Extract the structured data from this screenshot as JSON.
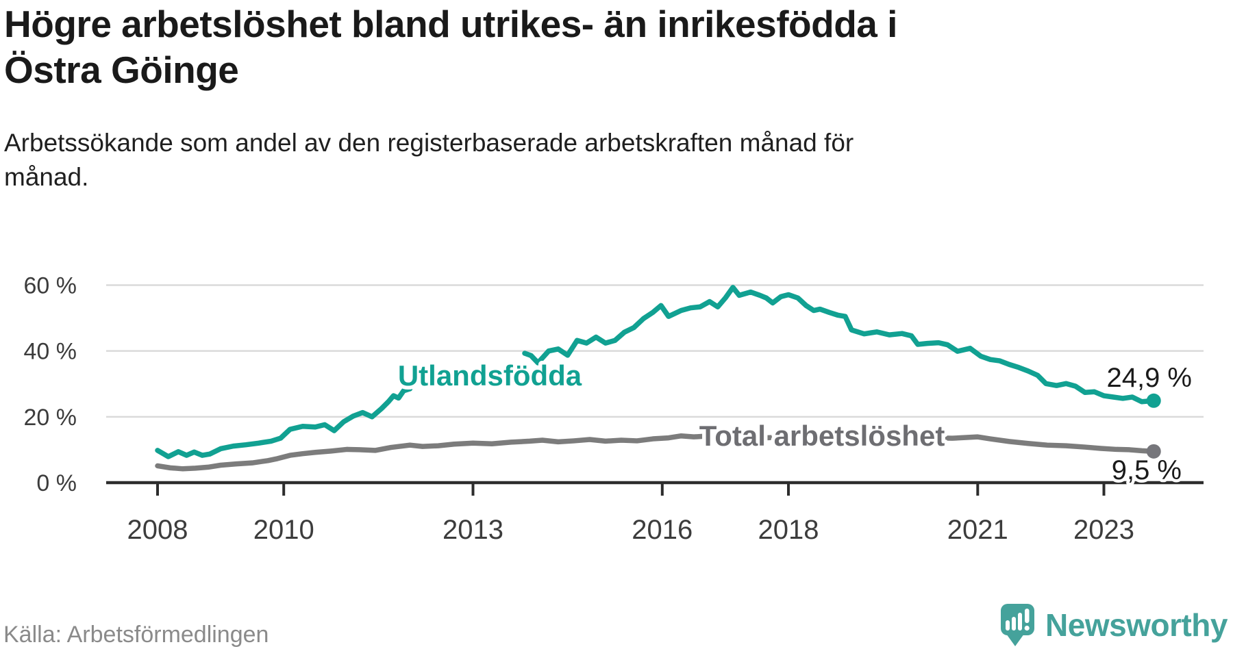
{
  "header": {
    "title": "Högre arbetslöshet bland utrikes- än inrikesfödda i\nÖstra Göinge",
    "subtitle": "Arbetssökande som andel av den registerbaserade arbetskraften månad för\nmånad."
  },
  "footer": {
    "source": "Källa: Arbetsförmedlingen",
    "brand": "Newsworthy"
  },
  "colors": {
    "accent_teal": "#11a192",
    "logo_teal": "#45a29b",
    "line_gray": "#7c7c7c",
    "label_gray": "#6e6e72",
    "dot_gray": "#76767b",
    "grid": "#dadada",
    "axis": "#2d2d2d",
    "text_dark": "#1a1a1a"
  },
  "chart_data": {
    "type": "line",
    "title": "Högre arbetslöshet bland utrikes- än inrikesfödda i Östra Göinge",
    "xlabel": "",
    "ylabel": "Arbetssökande som andel av den registerbaserade arbetskraften",
    "x_range": [
      2007.8,
      2024.4
    ],
    "y_range": [
      0,
      62
    ],
    "grid": "horizontal",
    "x_ticks": [
      {
        "year": 2008,
        "label": "2008"
      },
      {
        "year": 2010,
        "label": "2010"
      },
      {
        "year": 2013,
        "label": "2013"
      },
      {
        "year": 2016,
        "label": "2016"
      },
      {
        "year": 2018,
        "label": "2018"
      },
      {
        "year": 2021,
        "label": "2021"
      },
      {
        "year": 2023,
        "label": "2023"
      }
    ],
    "y_ticks": [
      {
        "value": 0,
        "label": "0 %"
      },
      {
        "value": 20,
        "label": "20 %"
      },
      {
        "value": 40,
        "label": "40 %"
      },
      {
        "value": 60,
        "label": "60 %"
      }
    ],
    "series": [
      {
        "name": "Utlandsfödda",
        "color": "#11a192",
        "end_label": "24,9 %",
        "end_value": 24.9,
        "segments": [
          [
            [
              2008.0,
              9.8
            ],
            [
              2008.17,
              7.9
            ],
            [
              2008.33,
              9.4
            ],
            [
              2008.46,
              8.3
            ],
            [
              2008.58,
              9.3
            ],
            [
              2008.71,
              8.3
            ],
            [
              2008.83,
              8.7
            ],
            [
              2009.0,
              10.3
            ],
            [
              2009.2,
              11.1
            ],
            [
              2009.4,
              11.5
            ],
            [
              2009.6,
              12.0
            ],
            [
              2009.8,
              12.6
            ],
            [
              2009.95,
              13.5
            ],
            [
              2010.1,
              16.2
            ],
            [
              2010.3,
              17.1
            ],
            [
              2010.5,
              16.9
            ],
            [
              2010.65,
              17.6
            ],
            [
              2010.8,
              15.8
            ],
            [
              2010.95,
              18.5
            ],
            [
              2011.1,
              20.2
            ],
            [
              2011.25,
              21.3
            ],
            [
              2011.4,
              20.0
            ],
            [
              2011.55,
              22.5
            ],
            [
              2011.66,
              24.6
            ],
            [
              2011.74,
              26.4
            ],
            [
              2011.82,
              25.7
            ],
            [
              2011.9,
              27.9
            ],
            [
              2012.0,
              28.5
            ]
          ],
          [
            [
              2013.82,
              39.3
            ],
            [
              2013.92,
              38.6
            ],
            [
              2014.03,
              36.4
            ],
            [
              2014.2,
              40.0
            ],
            [
              2014.35,
              40.6
            ],
            [
              2014.5,
              38.7
            ],
            [
              2014.65,
              43.2
            ],
            [
              2014.8,
              42.4
            ],
            [
              2014.95,
              44.2
            ],
            [
              2015.1,
              42.4
            ],
            [
              2015.25,
              43.2
            ],
            [
              2015.4,
              45.7
            ],
            [
              2015.55,
              47.1
            ],
            [
              2015.7,
              49.8
            ],
            [
              2015.85,
              51.7
            ],
            [
              2015.98,
              53.8
            ],
            [
              2016.1,
              50.5
            ],
            [
              2016.3,
              52.3
            ],
            [
              2016.45,
              53.1
            ],
            [
              2016.6,
              53.4
            ],
            [
              2016.75,
              55.0
            ],
            [
              2016.88,
              53.4
            ],
            [
              2017.0,
              56.1
            ],
            [
              2017.12,
              59.3
            ],
            [
              2017.22,
              56.9
            ],
            [
              2017.4,
              57.9
            ],
            [
              2017.55,
              56.9
            ],
            [
              2017.65,
              56.1
            ],
            [
              2017.75,
              54.6
            ],
            [
              2017.88,
              56.5
            ],
            [
              2018.0,
              57.1
            ],
            [
              2018.15,
              56.1
            ],
            [
              2018.28,
              53.8
            ],
            [
              2018.4,
              52.3
            ],
            [
              2018.5,
              52.7
            ],
            [
              2018.65,
              51.7
            ],
            [
              2018.78,
              50.9
            ],
            [
              2018.9,
              50.5
            ],
            [
              2019.0,
              46.4
            ],
            [
              2019.2,
              45.2
            ],
            [
              2019.4,
              45.8
            ],
            [
              2019.6,
              44.9
            ],
            [
              2019.8,
              45.3
            ],
            [
              2019.95,
              44.6
            ],
            [
              2020.05,
              42.0
            ],
            [
              2020.2,
              42.3
            ],
            [
              2020.38,
              42.5
            ],
            [
              2020.52,
              41.9
            ],
            [
              2020.68,
              39.9
            ],
            [
              2020.88,
              40.8
            ],
            [
              2021.05,
              38.4
            ],
            [
              2021.2,
              37.4
            ],
            [
              2021.35,
              37.0
            ],
            [
              2021.5,
              35.9
            ],
            [
              2021.65,
              35.0
            ],
            [
              2021.8,
              33.9
            ],
            [
              2021.95,
              32.6
            ],
            [
              2022.08,
              30.1
            ],
            [
              2022.25,
              29.5
            ],
            [
              2022.4,
              30.1
            ],
            [
              2022.55,
              29.3
            ],
            [
              2022.7,
              27.4
            ],
            [
              2022.85,
              27.6
            ],
            [
              2023.0,
              26.4
            ],
            [
              2023.15,
              26.0
            ],
            [
              2023.3,
              25.6
            ],
            [
              2023.45,
              26.0
            ],
            [
              2023.6,
              24.6
            ],
            [
              2023.79,
              24.9
            ]
          ]
        ]
      },
      {
        "name": "Total arbetslöshet",
        "color": "#7c7c7c",
        "end_label": "9,5 %",
        "end_value": 9.5,
        "segments": [
          [
            [
              2008.0,
              5.1
            ],
            [
              2008.2,
              4.5
            ],
            [
              2008.4,
              4.2
            ],
            [
              2008.6,
              4.4
            ],
            [
              2008.8,
              4.7
            ],
            [
              2009.0,
              5.3
            ],
            [
              2009.25,
              5.7
            ],
            [
              2009.5,
              6.0
            ],
            [
              2009.75,
              6.7
            ],
            [
              2009.9,
              7.3
            ],
            [
              2010.1,
              8.3
            ],
            [
              2010.3,
              8.8
            ],
            [
              2010.5,
              9.2
            ],
            [
              2010.75,
              9.6
            ],
            [
              2011.0,
              10.1
            ],
            [
              2011.2,
              10.0
            ],
            [
              2011.45,
              9.8
            ],
            [
              2011.7,
              10.7
            ],
            [
              2012.0,
              11.4
            ],
            [
              2012.2,
              11.0
            ],
            [
              2012.45,
              11.2
            ],
            [
              2012.7,
              11.7
            ],
            [
              2013.0,
              12.0
            ],
            [
              2013.3,
              11.8
            ],
            [
              2013.6,
              12.3
            ],
            [
              2013.9,
              12.6
            ],
            [
              2014.1,
              12.9
            ],
            [
              2014.35,
              12.4
            ],
            [
              2014.6,
              12.7
            ],
            [
              2014.85,
              13.1
            ],
            [
              2015.1,
              12.6
            ],
            [
              2015.35,
              12.9
            ],
            [
              2015.6,
              12.7
            ],
            [
              2015.85,
              13.3
            ],
            [
              2016.1,
              13.6
            ],
            [
              2016.3,
              14.2
            ],
            [
              2016.5,
              13.9
            ],
            [
              2016.75,
              14.2
            ],
            [
              2017.0,
              13.8
            ],
            [
              2017.3,
              14.0
            ],
            [
              2017.6,
              13.6
            ],
            [
              2017.9,
              13.8
            ],
            [
              2018.2,
              13.4
            ],
            [
              2018.5,
              13.6
            ],
            [
              2018.8,
              13.2
            ],
            [
              2019.1,
              13.0
            ],
            [
              2019.4,
              13.2
            ],
            [
              2019.7,
              12.9
            ],
            [
              2020.0,
              13.2
            ],
            [
              2020.3,
              13.6
            ],
            [
              2020.6,
              13.5
            ],
            [
              2020.8,
              13.7
            ],
            [
              2021.0,
              13.9
            ],
            [
              2021.2,
              13.3
            ],
            [
              2021.5,
              12.5
            ],
            [
              2021.8,
              11.9
            ],
            [
              2022.1,
              11.4
            ],
            [
              2022.4,
              11.2
            ],
            [
              2022.7,
              10.8
            ],
            [
              2022.95,
              10.4
            ],
            [
              2023.2,
              10.1
            ],
            [
              2023.4,
              10.0
            ],
            [
              2023.6,
              9.7
            ],
            [
              2023.79,
              9.5
            ]
          ]
        ]
      }
    ],
    "legend_position": "inline-labels"
  }
}
